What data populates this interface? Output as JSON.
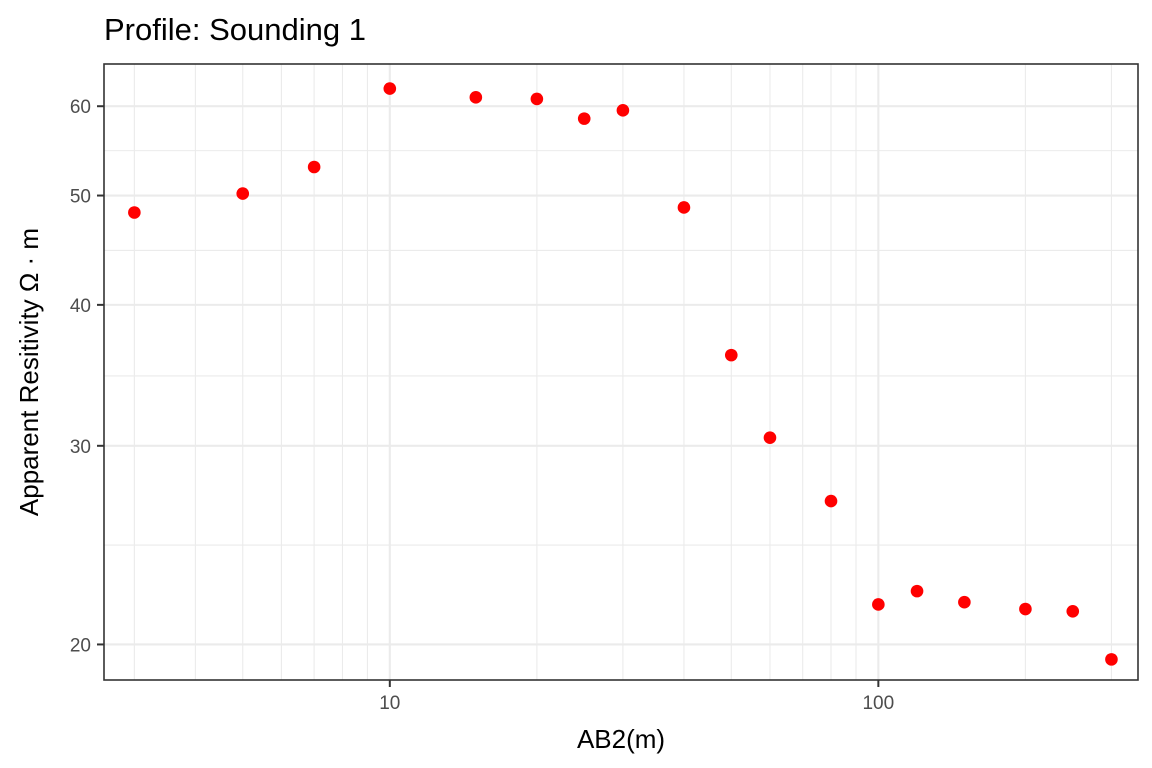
{
  "chart_data": {
    "type": "scatter",
    "title": "Profile:  Sounding 1",
    "xlabel": "AB2(m)",
    "ylabel": "Apparent Resitivity Ω · m",
    "x_scale": "log10",
    "y_scale": "log10",
    "xlim": [
      2.6,
      340
    ],
    "ylim": [
      18.6,
      65.4
    ],
    "x_major_ticks": [
      10,
      100
    ],
    "x_tick_labels": [
      "10",
      "100"
    ],
    "x_minor_grid": [
      3,
      4,
      5,
      6,
      7,
      8,
      9,
      20,
      30,
      40,
      50,
      60,
      70,
      80,
      90,
      200,
      300
    ],
    "x_mid_grid": [],
    "y_major_ticks": [
      20,
      30,
      40,
      50,
      60
    ],
    "y_tick_labels": [
      "20",
      "30",
      "40",
      "50",
      "60"
    ],
    "y_minor_grid": [
      24.5,
      34.6,
      44.7,
      54.8
    ],
    "grid": true,
    "point_color": "#ff0000",
    "points": [
      {
        "x": 3,
        "y": 48.3
      },
      {
        "x": 5,
        "y": 50.2
      },
      {
        "x": 7,
        "y": 53.0
      },
      {
        "x": 10,
        "y": 62.2
      },
      {
        "x": 15,
        "y": 61.1
      },
      {
        "x": 20,
        "y": 60.9
      },
      {
        "x": 25,
        "y": 58.5
      },
      {
        "x": 30,
        "y": 59.5
      },
      {
        "x": 40,
        "y": 48.8
      },
      {
        "x": 50,
        "y": 36.1
      },
      {
        "x": 60,
        "y": 30.5
      },
      {
        "x": 80,
        "y": 26.8
      },
      {
        "x": 100,
        "y": 21.7
      },
      {
        "x": 120,
        "y": 22.3
      },
      {
        "x": 150,
        "y": 21.8
      },
      {
        "x": 200,
        "y": 21.5
      },
      {
        "x": 250,
        "y": 21.4
      },
      {
        "x": 300,
        "y": 19.4
      }
    ]
  }
}
